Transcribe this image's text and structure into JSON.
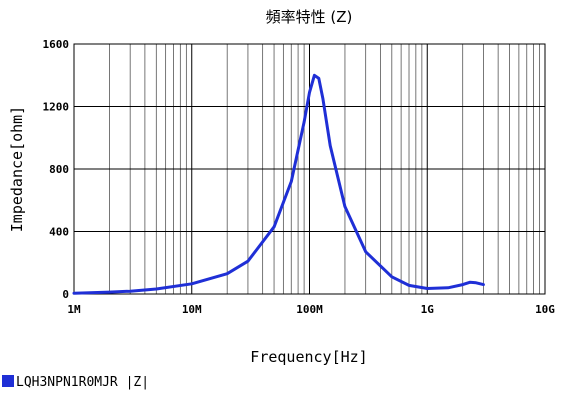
{
  "chart_data": {
    "type": "line",
    "title": "頻率特性 (Z)",
    "xlabel": "Frequency[Hz]",
    "ylabel": "Impedance[ohm]",
    "x_scale": "log",
    "xlim": [
      1000000,
      10000000000
    ],
    "ylim": [
      0,
      1600
    ],
    "x_ticks": [
      {
        "value": 1000000,
        "label": "1M"
      },
      {
        "value": 10000000,
        "label": "10M"
      },
      {
        "value": 100000000,
        "label": "100M"
      },
      {
        "value": 1000000000,
        "label": "1G"
      },
      {
        "value": 10000000000,
        "label": "10G"
      }
    ],
    "y_ticks": [
      {
        "value": 0,
        "label": "0"
      },
      {
        "value": 400,
        "label": "400"
      },
      {
        "value": 800,
        "label": "800"
      },
      {
        "value": 1200,
        "label": "1200"
      },
      {
        "value": 1600,
        "label": "1600"
      }
    ],
    "grid": true,
    "legend_position": "bottom-left",
    "series": [
      {
        "name": "LQH3NPN1R0MJR |Z|",
        "color": "#1f2fd6",
        "x": [
          1000000,
          2000000,
          3000000,
          5000000,
          10000000,
          20000000,
          30000000,
          50000000,
          70000000,
          90000000,
          100000000,
          110000000,
          120000000,
          130000000,
          150000000,
          200000000,
          300000000,
          500000000,
          700000000,
          1000000000,
          1500000000,
          2000000000,
          2300000000,
          2600000000,
          3000000000
        ],
        "y": [
          5,
          12,
          18,
          32,
          65,
          130,
          210,
          430,
          720,
          1100,
          1290,
          1400,
          1380,
          1250,
          950,
          560,
          270,
          110,
          55,
          35,
          40,
          60,
          75,
          72,
          60
        ]
      }
    ]
  }
}
